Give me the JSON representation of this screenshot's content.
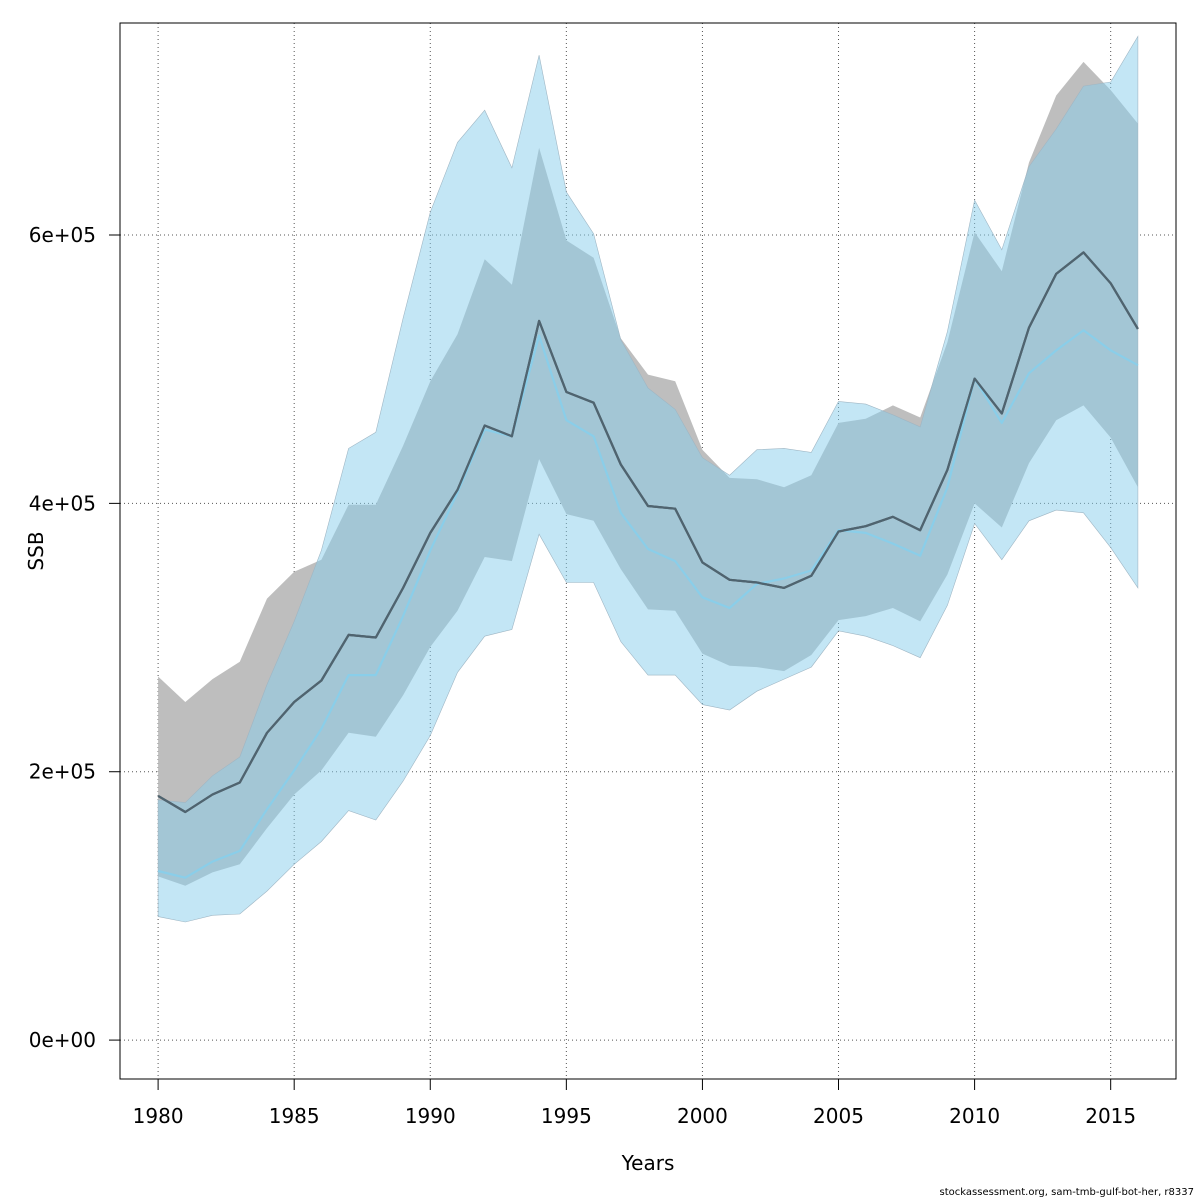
{
  "chart_data": {
    "type": "area",
    "xlabel": "Years",
    "ylabel": "SSB",
    "xlim": [
      1978.6,
      2017.4
    ],
    "ylim": [
      -29000,
      758000
    ],
    "x_ticks": [
      1980,
      1985,
      1990,
      1995,
      2000,
      2005,
      2010,
      2015
    ],
    "x_tick_labels": [
      "1980",
      "1985",
      "1990",
      "1995",
      "2000",
      "2005",
      "2010",
      "2015"
    ],
    "y_ticks": [
      0,
      200000,
      400000,
      600000
    ],
    "y_tick_labels": [
      "0e+00",
      "2e+05",
      "4e+05",
      "6e+05"
    ],
    "grid": true,
    "x": [
      1980,
      1981,
      1982,
      1983,
      1984,
      1985,
      1986,
      1987,
      1988,
      1989,
      1990,
      1991,
      1992,
      1993,
      1994,
      1995,
      1996,
      1997,
      1998,
      1999,
      2000,
      2001,
      2002,
      2003,
      2004,
      2005,
      2006,
      2007,
      2008,
      2009,
      2010,
      2011,
      2012,
      2013,
      2014,
      2015,
      2016
    ],
    "series": [
      {
        "color": "#555555",
        "band_color": "#bebebe",
        "values": [
          182000,
          170000,
          183000,
          192000,
          229000,
          252000,
          268000,
          302000,
          300000,
          337000,
          378000,
          410000,
          458000,
          450000,
          536000,
          483000,
          475000,
          429000,
          398000,
          396000,
          356000,
          343000,
          341000,
          337000,
          346000,
          379000,
          383000,
          390000,
          380000,
          425000,
          493000,
          467000,
          531000,
          571000,
          587000,
          564000,
          530000
        ],
        "lower": [
          122000,
          115000,
          125000,
          131000,
          158000,
          183000,
          201000,
          229000,
          226000,
          257000,
          293000,
          320000,
          360000,
          357000,
          433000,
          392000,
          387000,
          351000,
          321000,
          320000,
          288000,
          279000,
          278000,
          275000,
          287000,
          313000,
          316000,
          322000,
          312000,
          347000,
          400000,
          382000,
          430000,
          462000,
          473000,
          449000,
          412000
        ],
        "upper": [
          271000,
          252000,
          269000,
          282000,
          329000,
          349000,
          358000,
          399000,
          399000,
          443000,
          491000,
          526000,
          582000,
          563000,
          665000,
          596000,
          583000,
          523000,
          496000,
          491000,
          440000,
          419000,
          418000,
          412000,
          421000,
          460000,
          463000,
          473000,
          464000,
          520000,
          602000,
          573000,
          654000,
          704000,
          729000,
          708000,
          683000
        ]
      },
      {
        "color": "#87ceeb",
        "band_color": "#87ceeb",
        "values": [
          126000,
          121000,
          133000,
          141000,
          172000,
          201000,
          232000,
          272000,
          272000,
          316000,
          365000,
          408000,
          455000,
          450000,
          525000,
          462000,
          450000,
          393000,
          366000,
          357000,
          330000,
          322000,
          340000,
          344000,
          350000,
          380000,
          378000,
          370000,
          361000,
          412000,
          493000,
          460000,
          497000,
          514000,
          529000,
          514000,
          503000
        ],
        "lower": [
          92000,
          88000,
          93000,
          94000,
          111000,
          131000,
          148000,
          171000,
          164000,
          193000,
          227000,
          274000,
          301000,
          306000,
          377000,
          341000,
          341000,
          297000,
          272000,
          272000,
          250000,
          246000,
          260000,
          269000,
          278000,
          305000,
          301000,
          294000,
          285000,
          324000,
          385000,
          358000,
          387000,
          395000,
          393000,
          367000,
          337000
        ],
        "upper": [
          179000,
          177000,
          197000,
          211000,
          265000,
          312000,
          365000,
          441000,
          453000,
          538000,
          617000,
          669000,
          693000,
          650000,
          734000,
          632000,
          601000,
          522000,
          486000,
          470000,
          434000,
          421000,
          440000,
          441000,
          438000,
          476000,
          474000,
          466000,
          457000,
          528000,
          626000,
          589000,
          651000,
          679000,
          711000,
          714000,
          748000
        ]
      }
    ]
  },
  "footer": {
    "credit": "stockassessment.org, sam-tmb-gulf-bot-her, r8337"
  }
}
